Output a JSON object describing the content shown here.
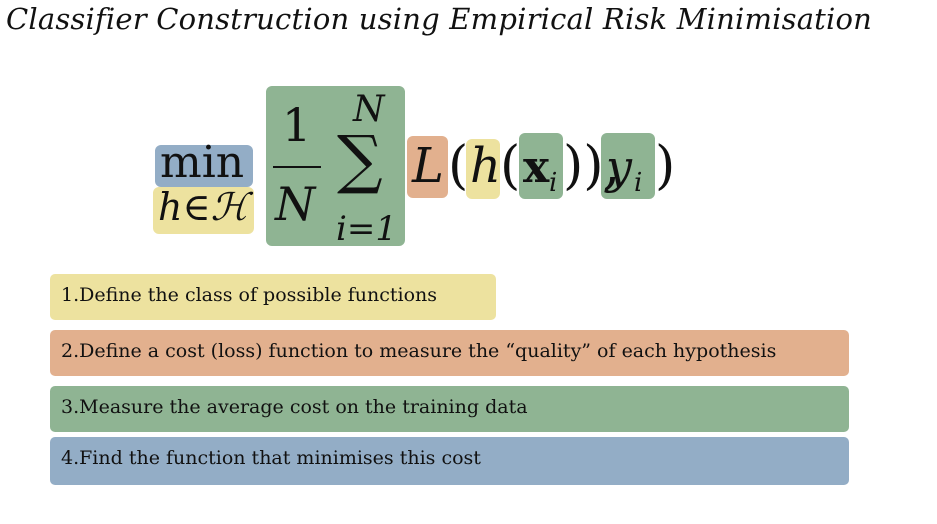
{
  "title": "Classifier Construction using Empirical Risk Minimisation",
  "formula": {
    "min": "min",
    "constraint": "h∈ℋ",
    "one": "1",
    "N": "N",
    "sum": "∑",
    "sum_upper": "N",
    "sum_lower": "i=1",
    "L": "L",
    "open_paren": "(",
    "h": "h",
    "x": "x",
    "x_sub": "i",
    "close_parens": ")),",
    "y": "y",
    "y_sub": "i",
    "final_paren": ")"
  },
  "colors": {
    "yellow": "#ede29f",
    "orange": "#e2b08e",
    "green": "#8fb493",
    "blue": "#93adc6"
  },
  "steps": [
    "1.Define the class of possible functions",
    "2.Define a cost (loss) function to measure the “quality” of each hypothesis",
    "3.Measure the average cost on the training data",
    "4.Find the function that minimises this cost"
  ]
}
